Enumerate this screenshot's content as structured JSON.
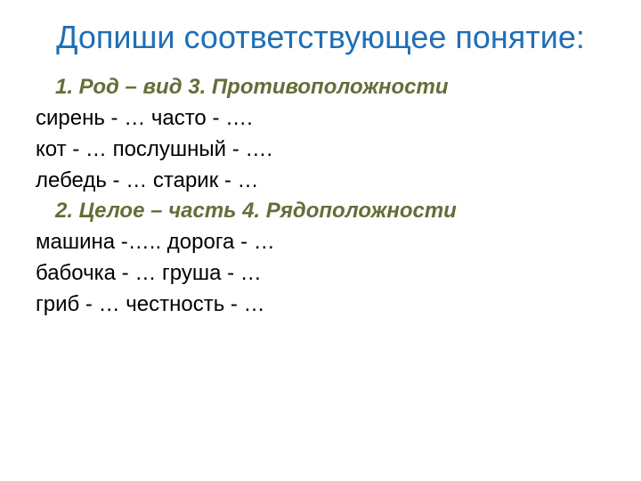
{
  "title": "Допиши соответствующее понятие:",
  "colors": {
    "title": "#1f6fb5",
    "heading": "#646e39",
    "body": "#000000",
    "background": "#ffffff"
  },
  "typography": {
    "title_fontsize": 36,
    "body_fontsize": 24,
    "heading_italic": true,
    "heading_bold": true
  },
  "sections": {
    "h1": "1. Род – вид                        3. Противоположности",
    "r1": "сирень - …                           часто - ….",
    "r2": "кот - …                                 послушный - ….",
    "r3": "лебедь - …                           старик - …",
    "h2": "2. Целое – часть                4. Рядоположности",
    "r4": "машина -…..                         дорога - …",
    "r5": "бабочка - …                          груша - …",
    "r6": "гриб - …                                честность - …"
  }
}
